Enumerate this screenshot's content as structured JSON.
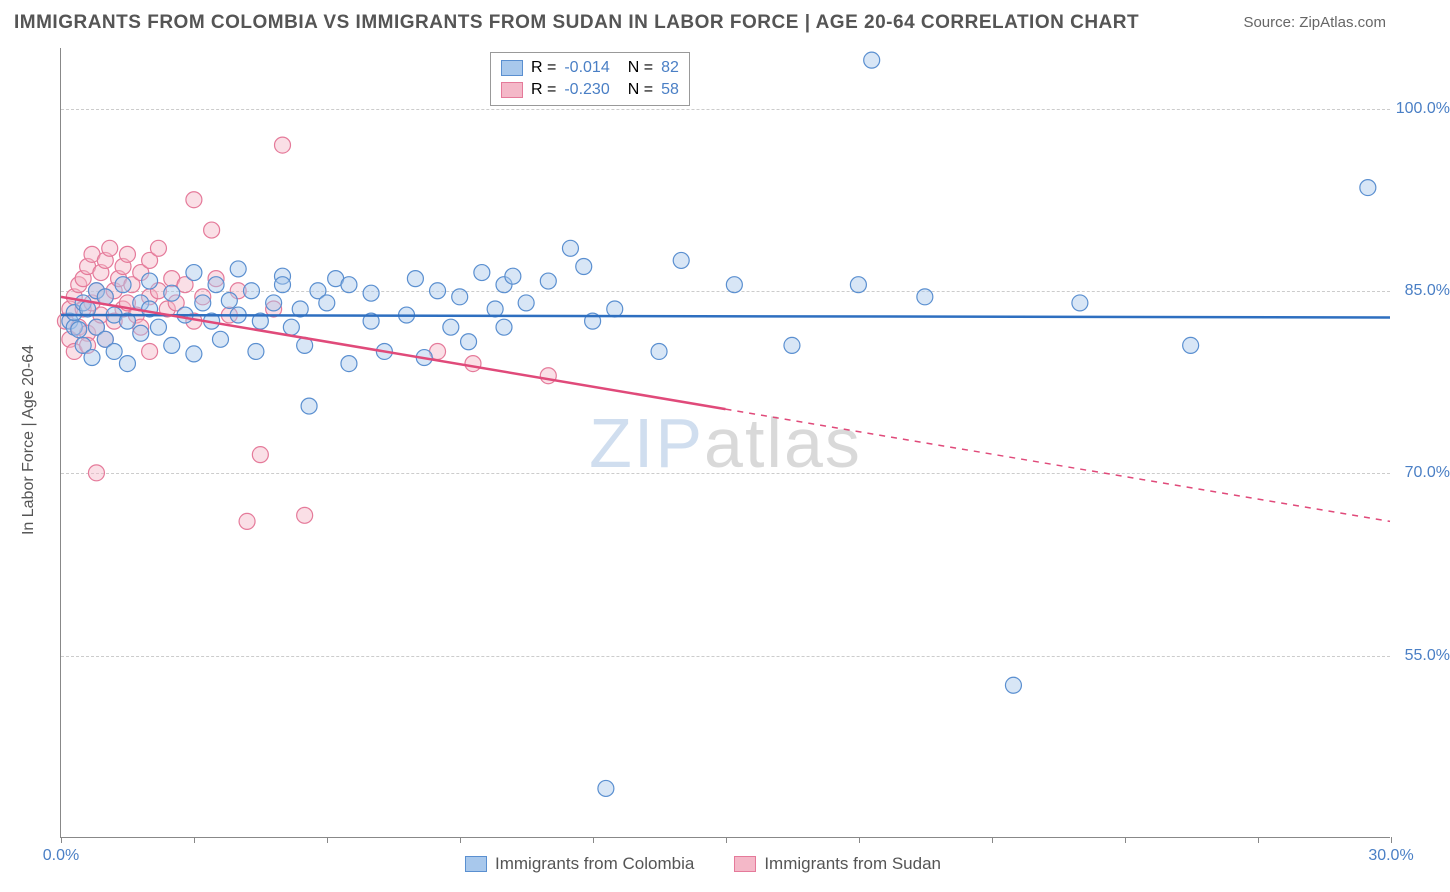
{
  "title": "IMMIGRANTS FROM COLOMBIA VS IMMIGRANTS FROM SUDAN IN LABOR FORCE | AGE 20-64 CORRELATION CHART",
  "source": "Source: ZipAtlas.com",
  "y_axis_label": "In Labor Force | Age 20-64",
  "chart": {
    "type": "scatter",
    "xlim": [
      0,
      30
    ],
    "ylim": [
      40,
      105
    ],
    "x_ticks": [
      0,
      3,
      6,
      9,
      12,
      15,
      18,
      21,
      24,
      27,
      30
    ],
    "x_tick_labels": {
      "0": "0.0%",
      "30": "30.0%"
    },
    "y_ticks": [
      55,
      70,
      85,
      100
    ],
    "y_tick_labels": {
      "55": "55.0%",
      "70": "70.0%",
      "85": "85.0%",
      "100": "100.0%"
    },
    "background_color": "#ffffff",
    "grid_color": "#cccccc",
    "marker_radius": 8,
    "marker_opacity": 0.45,
    "series": [
      {
        "name": "Immigrants from Colombia",
        "color_fill": "#a8c8ec",
        "color_stroke": "#5a8fd0",
        "line_color": "#2e6fc0",
        "trend": {
          "x1": 0,
          "y1": 83,
          "x2": 30,
          "y2": 82.8,
          "solid_until_x": 30
        },
        "R": "-0.014",
        "N": "82",
        "points": [
          [
            0.2,
            82.5
          ],
          [
            0.3,
            82
          ],
          [
            0.3,
            83.2
          ],
          [
            0.4,
            81.8
          ],
          [
            0.5,
            84
          ],
          [
            0.5,
            80.5
          ],
          [
            0.6,
            83.5
          ],
          [
            0.7,
            79.5
          ],
          [
            0.8,
            85
          ],
          [
            0.8,
            82
          ],
          [
            1.0,
            81
          ],
          [
            1.0,
            84.5
          ],
          [
            1.2,
            83
          ],
          [
            1.2,
            80
          ],
          [
            1.4,
            85.5
          ],
          [
            1.5,
            79
          ],
          [
            1.5,
            82.5
          ],
          [
            1.8,
            84
          ],
          [
            1.8,
            81.5
          ],
          [
            2.0,
            83.5
          ],
          [
            2.0,
            85.8
          ],
          [
            2.2,
            82
          ],
          [
            2.5,
            80.5
          ],
          [
            2.5,
            84.8
          ],
          [
            2.8,
            83
          ],
          [
            3.0,
            86.5
          ],
          [
            3.0,
            79.8
          ],
          [
            3.2,
            84
          ],
          [
            3.4,
            82.5
          ],
          [
            3.5,
            85.5
          ],
          [
            3.6,
            81
          ],
          [
            3.8,
            84.2
          ],
          [
            4.0,
            83
          ],
          [
            4.0,
            86.8
          ],
          [
            4.3,
            85
          ],
          [
            4.4,
            80
          ],
          [
            4.5,
            82.5
          ],
          [
            4.8,
            84
          ],
          [
            5.0,
            86.2
          ],
          [
            5.0,
            85.5
          ],
          [
            5.2,
            82
          ],
          [
            5.4,
            83.5
          ],
          [
            5.5,
            80.5
          ],
          [
            5.6,
            75.5
          ],
          [
            5.8,
            85
          ],
          [
            6.0,
            84
          ],
          [
            6.2,
            86
          ],
          [
            6.5,
            79
          ],
          [
            6.5,
            85.5
          ],
          [
            7.0,
            82.5
          ],
          [
            7.0,
            84.8
          ],
          [
            7.3,
            80
          ],
          [
            7.8,
            83
          ],
          [
            8.0,
            86
          ],
          [
            8.2,
            79.5
          ],
          [
            8.5,
            85
          ],
          [
            8.8,
            82
          ],
          [
            9.0,
            84.5
          ],
          [
            9.2,
            80.8
          ],
          [
            9.5,
            86.5
          ],
          [
            9.8,
            83.5
          ],
          [
            10.0,
            85.5
          ],
          [
            10.0,
            82
          ],
          [
            10.2,
            86.2
          ],
          [
            10.5,
            84
          ],
          [
            11.0,
            85.8
          ],
          [
            11.5,
            88.5
          ],
          [
            11.8,
            87
          ],
          [
            12.0,
            82.5
          ],
          [
            12.3,
            44
          ],
          [
            12.5,
            83.5
          ],
          [
            13.5,
            80
          ],
          [
            14.0,
            87.5
          ],
          [
            15.2,
            85.5
          ],
          [
            16.5,
            80.5
          ],
          [
            18.0,
            85.5
          ],
          [
            18.3,
            104
          ],
          [
            19.5,
            84.5
          ],
          [
            21.5,
            52.5
          ],
          [
            23.0,
            84
          ],
          [
            25.5,
            80.5
          ],
          [
            29.5,
            93.5
          ]
        ]
      },
      {
        "name": "Immigrants from Sudan",
        "color_fill": "#f4b8c8",
        "color_stroke": "#e57a9a",
        "line_color": "#e04a7a",
        "trend": {
          "x1": 0,
          "y1": 84.5,
          "x2": 30,
          "y2": 66,
          "solid_until_x": 15
        },
        "R": "-0.230",
        "N": "58",
        "points": [
          [
            0.1,
            82.5
          ],
          [
            0.2,
            83.5
          ],
          [
            0.2,
            81
          ],
          [
            0.3,
            84.5
          ],
          [
            0.3,
            80
          ],
          [
            0.4,
            85.5
          ],
          [
            0.4,
            82
          ],
          [
            0.5,
            86
          ],
          [
            0.5,
            83.5
          ],
          [
            0.6,
            87
          ],
          [
            0.6,
            81.5
          ],
          [
            0.6,
            80.5
          ],
          [
            0.7,
            84
          ],
          [
            0.7,
            88
          ],
          [
            0.8,
            85
          ],
          [
            0.8,
            82
          ],
          [
            0.8,
            70
          ],
          [
            0.9,
            86.5
          ],
          [
            0.9,
            83
          ],
          [
            1.0,
            87.5
          ],
          [
            1.0,
            84.5
          ],
          [
            1.0,
            81
          ],
          [
            1.1,
            88.5
          ],
          [
            1.2,
            85
          ],
          [
            1.2,
            82.5
          ],
          [
            1.3,
            86
          ],
          [
            1.4,
            83.5
          ],
          [
            1.4,
            87
          ],
          [
            1.5,
            84
          ],
          [
            1.5,
            88
          ],
          [
            1.6,
            85.5
          ],
          [
            1.7,
            83
          ],
          [
            1.8,
            86.5
          ],
          [
            1.8,
            82
          ],
          [
            2.0,
            84.5
          ],
          [
            2.0,
            87.5
          ],
          [
            2.0,
            80
          ],
          [
            2.2,
            85
          ],
          [
            2.2,
            88.5
          ],
          [
            2.4,
            83.5
          ],
          [
            2.5,
            86
          ],
          [
            2.6,
            84
          ],
          [
            2.8,
            85.5
          ],
          [
            3.0,
            82.5
          ],
          [
            3.0,
            92.5
          ],
          [
            3.2,
            84.5
          ],
          [
            3.4,
            90
          ],
          [
            3.5,
            86
          ],
          [
            3.8,
            83
          ],
          [
            4.0,
            85
          ],
          [
            4.2,
            66
          ],
          [
            4.5,
            71.5
          ],
          [
            4.8,
            83.5
          ],
          [
            5.0,
            97
          ],
          [
            5.5,
            66.5
          ],
          [
            8.5,
            80
          ],
          [
            9.3,
            79
          ],
          [
            11.0,
            78
          ]
        ]
      }
    ]
  },
  "legend_top": {
    "R_label": "R =",
    "N_label": "N ="
  },
  "legend_bottom": {
    "items": [
      "Immigrants from Colombia",
      "Immigrants from Sudan"
    ]
  },
  "watermark": {
    "part1": "ZIP",
    "part2": "atlas"
  }
}
